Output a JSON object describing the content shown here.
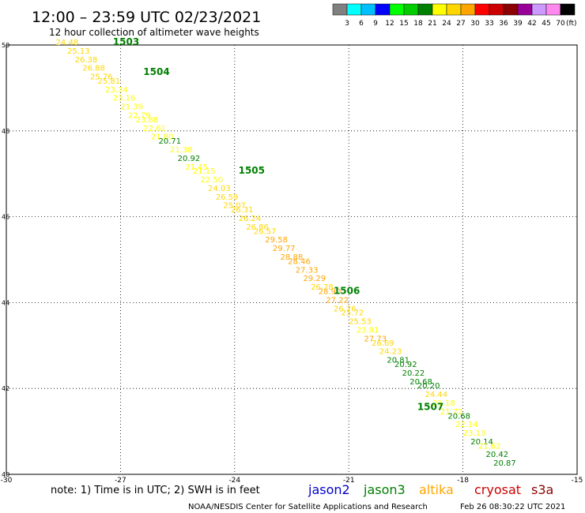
{
  "header": {
    "title": "12:00 – 23:59 UTC 02/23/2021",
    "subtitle": "12 hour collection of altimeter wave heights"
  },
  "legend": {
    "unit": "(ft)",
    "colors": [
      "#808080",
      "#00ffff",
      "#00bfff",
      "#0000ff",
      "#00ff00",
      "#00cc00",
      "#008000",
      "#ffff00",
      "#ffd700",
      "#ffa500",
      "#ff0000",
      "#cc0000",
      "#8b0000",
      "#990099",
      "#cc99ff",
      "#ff88ee",
      "#000000"
    ],
    "ticks": [
      "3",
      "6",
      "9",
      "12",
      "15",
      "18",
      "21",
      "24",
      "27",
      "30",
      "33",
      "36",
      "39",
      "42",
      "45",
      "70"
    ]
  },
  "axes": {
    "lon_ticks": [
      "-30",
      "-27",
      "-24",
      "-21",
      "-18",
      "-15"
    ],
    "lat_ticks": [
      "50",
      "48",
      "46",
      "44",
      "42",
      "40"
    ]
  },
  "note": "note: 1) Time is in UTC; 2) SWH is in feet",
  "satellites": [
    {
      "name": "jason2",
      "color": "#0000cc"
    },
    {
      "name": "jason3",
      "color": "#008000"
    },
    {
      "name": "altika",
      "color": "#ffa500"
    },
    {
      "name": "cryosat",
      "color": "#cc0000"
    },
    {
      "name": "s3a",
      "color": "#8b0000"
    }
  ],
  "footer": {
    "credit": "NOAA/NESDIS Center for Satellite Applications and Research",
    "timestamp": "Feb 26 08:30:22 UTC 2021"
  },
  "chart_data": {
    "type": "scatter",
    "x_axis": "longitude",
    "y_axis": "latitude",
    "xlim": [
      -30,
      -15
    ],
    "ylim": [
      40,
      50
    ],
    "time_labels": [
      {
        "label": "1503",
        "lon": -27.2,
        "lat": 50.0
      },
      {
        "label": "1504",
        "lon": -26.4,
        "lat": 49.3
      },
      {
        "label": "1505",
        "lon": -23.9,
        "lat": 47.0
      },
      {
        "label": "1506",
        "lon": -21.4,
        "lat": 44.2
      },
      {
        "label": "1507",
        "lon": -19.2,
        "lat": 41.5
      }
    ],
    "points": [
      {
        "lon": -28.7,
        "lat": 50.0,
        "swh": "24.48"
      },
      {
        "lon": -28.4,
        "lat": 49.8,
        "swh": "25.13"
      },
      {
        "lon": -28.2,
        "lat": 49.6,
        "swh": "26.38"
      },
      {
        "lon": -28.0,
        "lat": 49.4,
        "swh": "26.88"
      },
      {
        "lon": -27.8,
        "lat": 49.2,
        "swh": "25.76"
      },
      {
        "lon": -27.6,
        "lat": 49.1,
        "swh": "25.81"
      },
      {
        "lon": -27.4,
        "lat": 48.9,
        "swh": "23.34"
      },
      {
        "lon": -27.2,
        "lat": 48.7,
        "swh": "23.16"
      },
      {
        "lon": -27.0,
        "lat": 48.5,
        "swh": "21.39"
      },
      {
        "lon": -26.8,
        "lat": 48.3,
        "swh": "22.79"
      },
      {
        "lon": -26.6,
        "lat": 48.2,
        "swh": "23.88"
      },
      {
        "lon": -26.4,
        "lat": 48.0,
        "swh": "22.61"
      },
      {
        "lon": -26.2,
        "lat": 47.8,
        "swh": "21.80"
      },
      {
        "lon": -26.0,
        "lat": 47.7,
        "swh": "20.71"
      },
      {
        "lon": -25.7,
        "lat": 47.5,
        "swh": "21.38"
      },
      {
        "lon": -25.5,
        "lat": 47.3,
        "swh": "20.92"
      },
      {
        "lon": -25.3,
        "lat": 47.1,
        "swh": "21.45"
      },
      {
        "lon": -25.1,
        "lat": 47.0,
        "swh": "21.15"
      },
      {
        "lon": -24.9,
        "lat": 46.8,
        "swh": "22.50"
      },
      {
        "lon": -24.7,
        "lat": 46.6,
        "swh": "24.03"
      },
      {
        "lon": -24.5,
        "lat": 46.4,
        "swh": "26.59"
      },
      {
        "lon": -24.3,
        "lat": 46.2,
        "swh": "25.07"
      },
      {
        "lon": -24.1,
        "lat": 46.1,
        "swh": "26.31"
      },
      {
        "lon": -23.9,
        "lat": 45.9,
        "swh": "26.24"
      },
      {
        "lon": -23.7,
        "lat": 45.7,
        "swh": "26.86"
      },
      {
        "lon": -23.5,
        "lat": 45.6,
        "swh": "26.57"
      },
      {
        "lon": -23.2,
        "lat": 45.4,
        "swh": "29.58"
      },
      {
        "lon": -23.0,
        "lat": 45.2,
        "swh": "29.77"
      },
      {
        "lon": -22.8,
        "lat": 45.0,
        "swh": "28.88"
      },
      {
        "lon": -22.6,
        "lat": 44.9,
        "swh": "28.46"
      },
      {
        "lon": -22.4,
        "lat": 44.7,
        "swh": "27.33"
      },
      {
        "lon": -22.2,
        "lat": 44.5,
        "swh": "29.29"
      },
      {
        "lon": -22.0,
        "lat": 44.3,
        "swh": "26.78"
      },
      {
        "lon": -21.8,
        "lat": 44.2,
        "swh": "28.90"
      },
      {
        "lon": -21.6,
        "lat": 44.0,
        "swh": "27.22"
      },
      {
        "lon": -21.4,
        "lat": 43.8,
        "swh": "26.76"
      },
      {
        "lon": -21.2,
        "lat": 43.7,
        "swh": "25.72"
      },
      {
        "lon": -21.0,
        "lat": 43.5,
        "swh": "25.53"
      },
      {
        "lon": -20.8,
        "lat": 43.3,
        "swh": "23.91"
      },
      {
        "lon": -20.6,
        "lat": 43.1,
        "swh": "27.73"
      },
      {
        "lon": -20.4,
        "lat": 43.0,
        "swh": "26.69"
      },
      {
        "lon": -20.2,
        "lat": 42.8,
        "swh": "24.23"
      },
      {
        "lon": -20.0,
        "lat": 42.6,
        "swh": "20.81"
      },
      {
        "lon": -19.8,
        "lat": 42.5,
        "swh": "20.92"
      },
      {
        "lon": -19.6,
        "lat": 42.3,
        "swh": "20.22"
      },
      {
        "lon": -19.4,
        "lat": 42.1,
        "swh": "20.68"
      },
      {
        "lon": -19.2,
        "lat": 42.0,
        "swh": "20.20"
      },
      {
        "lon": -19.0,
        "lat": 41.8,
        "swh": "24.44"
      },
      {
        "lon": -18.8,
        "lat": 41.6,
        "swh": "21.18"
      },
      {
        "lon": -18.6,
        "lat": 41.4,
        "swh": "21.72"
      },
      {
        "lon": -18.4,
        "lat": 41.3,
        "swh": "20.68"
      },
      {
        "lon": -18.2,
        "lat": 41.1,
        "swh": "22.14"
      },
      {
        "lon": -18.0,
        "lat": 40.9,
        "swh": "23.13"
      },
      {
        "lon": -17.8,
        "lat": 40.7,
        "swh": "20.14"
      },
      {
        "lon": -17.6,
        "lat": 40.6,
        "swh": "21.62"
      },
      {
        "lon": -17.4,
        "lat": 40.4,
        "swh": "20.42"
      },
      {
        "lon": -17.2,
        "lat": 40.2,
        "swh": "20.87"
      }
    ]
  }
}
